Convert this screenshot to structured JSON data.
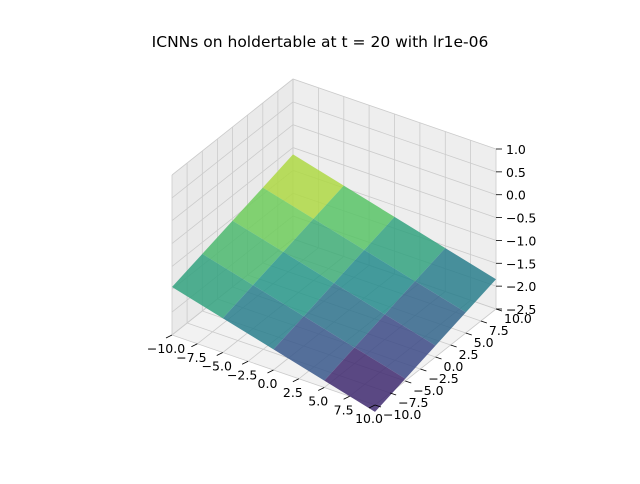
{
  "chart_data": {
    "type": "surface3d",
    "title": "ICNNs on holdertable at t = 20 with lr1e-06",
    "colormap": "viridis",
    "grid": true,
    "x_axis": {
      "range": [
        -10.0,
        10.0
      ],
      "tick_labels": [
        "−10.0",
        "−7.5",
        "−5.0",
        "−2.5",
        "0.0",
        "2.5",
        "5.0",
        "7.5",
        "10.0"
      ]
    },
    "y_axis": {
      "range": [
        -10.0,
        10.0
      ],
      "tick_labels": [
        "−10.0",
        "−7.5",
        "−5.0",
        "−2.5",
        "0.0",
        "2.5",
        "5.0",
        "7.5",
        "10.0"
      ]
    },
    "z_axis": {
      "range": [
        -2.5,
        1.0
      ],
      "tick_labels": [
        "−2.5",
        "−2.0",
        "−1.5",
        "−1.0",
        "−0.5",
        "0.0",
        "0.5",
        "1.0"
      ]
    },
    "surface": {
      "x": [
        -10,
        -5,
        0,
        5,
        10
      ],
      "y": [
        -10,
        -5,
        0,
        5,
        10
      ],
      "z": [
        [
          -1.45,
          -1.25,
          -1.05,
          -0.85,
          -0.65
        ],
        [
          -1.75,
          -1.55,
          -1.35,
          -1.15,
          -0.95
        ],
        [
          -2.05,
          -1.85,
          -1.65,
          -1.45,
          -1.25
        ],
        [
          -2.35,
          -2.15,
          -1.95,
          -1.75,
          -1.55
        ],
        [
          -2.65,
          -2.45,
          -2.25,
          -2.05,
          -1.85
        ]
      ]
    }
  }
}
